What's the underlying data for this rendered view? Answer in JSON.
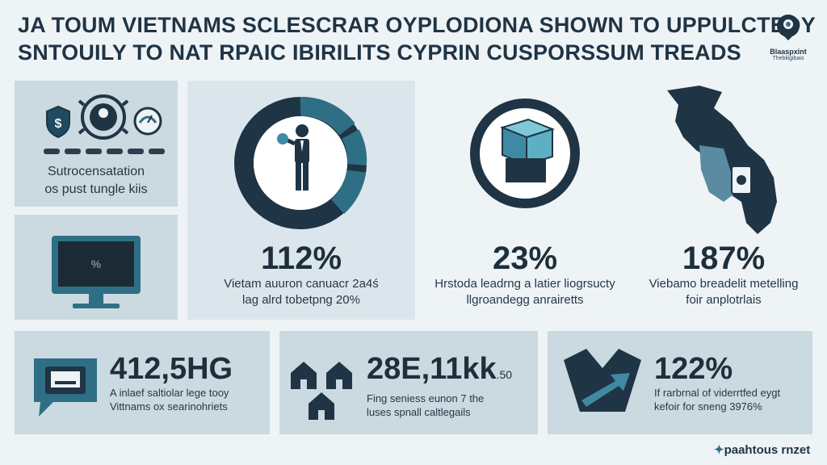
{
  "header": {
    "line1": "JA TOUM VIETNAMS SCLESCRAR OYPLODIONA SHOWN TO UPPULCTEDY",
    "line2": "SNTOUILY TO NAT RPAIC IBIRILITS CYPRIN CUSPORSSUM TREADS"
  },
  "logo": {
    "line1": "Blaaspxint",
    "line2": "Thebiligibais"
  },
  "panels": {
    "top_left": {
      "caption1": "Sutrocensatation",
      "caption2": "os pust tungle kiis"
    },
    "donut": {
      "value": "112%",
      "caption1": "Vietam auuron canuacr 2a4ś",
      "caption2": "lag alrd tobetpng 20%"
    },
    "cube": {
      "value": "23%",
      "caption1": "Hrstoda leadrng a latier liogrsucty",
      "caption2": "llgroandegg anrairetts"
    },
    "map": {
      "value": "187%",
      "caption1": "Viebamo breadelit metelling",
      "caption2": "foir anplotrlais"
    }
  },
  "bottom": {
    "chat": {
      "value": "412,5HG",
      "caption1": "A inlaef saltiolar lege tooy",
      "caption2": "Vittnams ox searinohriets"
    },
    "houses": {
      "value": "28E,11kk",
      "suffix": ".50",
      "caption1": "Fing seniess eunon 7 the",
      "caption2": "luses spnall caltlegails"
    },
    "arrow": {
      "value": "122%",
      "caption1": "If rarbrnal of viderrtfed eygt",
      "caption2": "kefoir for sneng 3976%"
    }
  },
  "footer": {
    "brand": "paahtous rnzet"
  },
  "colors": {
    "navy": "#1f3444",
    "teal": "#2f6f86",
    "panel": "#cbd9e1",
    "bg": "#eef3f6"
  }
}
